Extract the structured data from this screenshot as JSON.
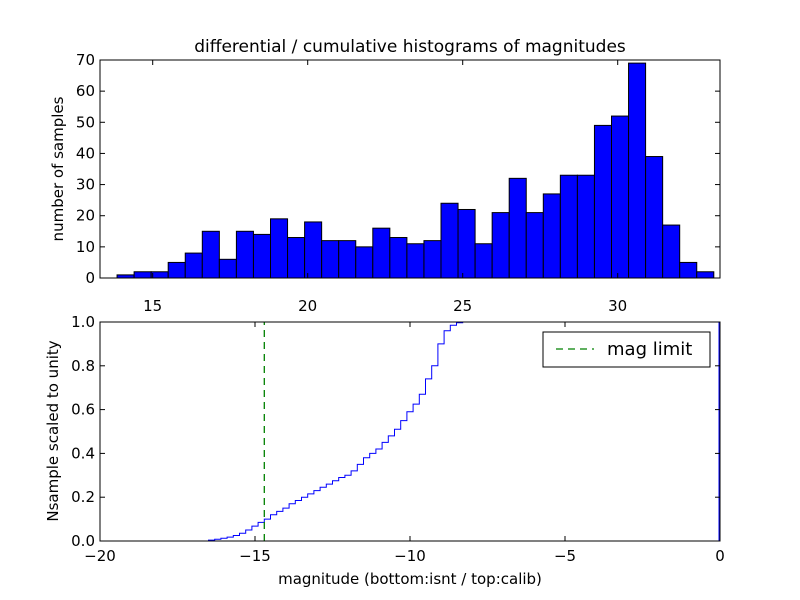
{
  "chart_data": [
    {
      "type": "bar",
      "title": "differential / cumulative histograms of magnitudes",
      "ylabel": "number of samples",
      "xlabel": "",
      "xlim": [
        13.3,
        33.3
      ],
      "ylim": [
        0,
        70
      ],
      "xticks": [
        "15",
        "20",
        "25",
        "30"
      ],
      "yticks": [
        "0",
        "10",
        "20",
        "30",
        "40",
        "50",
        "60",
        "70"
      ],
      "bar_color": "#0000ff",
      "bin_edges": [
        13.3,
        13.85,
        14.4,
        14.95,
        15.5,
        16.05,
        16.6,
        17.15,
        17.7,
        18.25,
        18.8,
        19.35,
        19.9,
        20.45,
        21.0,
        21.55,
        22.1,
        22.65,
        23.2,
        23.75,
        24.3,
        24.85,
        25.4,
        25.95,
        26.5,
        27.05,
        27.6,
        28.15,
        28.7,
        29.25,
        29.8,
        30.35,
        30.9,
        31.45,
        32.0,
        32.55,
        33.1
      ],
      "values": [
        0,
        1,
        2,
        2,
        5,
        8,
        15,
        6,
        15,
        14,
        19,
        13,
        18,
        12,
        12,
        10,
        16,
        13,
        11,
        12,
        24,
        22,
        11,
        21,
        32,
        21,
        27,
        33,
        33,
        49,
        52,
        69,
        39,
        17,
        5,
        2
      ]
    },
    {
      "type": "line",
      "xlabel": "magnitude (bottom:isnt / top:calib)",
      "ylabel": "Nsample scaled to unity",
      "xlim": [
        -20,
        0
      ],
      "ylim": [
        0,
        1
      ],
      "xticks": [
        "−20",
        "−15",
        "−10",
        "−5",
        "0"
      ],
      "yticks": [
        "0.0",
        "0.2",
        "0.4",
        "0.6",
        "0.8",
        "1.0"
      ],
      "series": [
        {
          "step": true,
          "color": "#0000ff",
          "x": [
            -20.0,
            -16.7,
            -16.5,
            -16.3,
            -16.1,
            -15.9,
            -15.7,
            -15.5,
            -15.3,
            -15.1,
            -14.9,
            -14.7,
            -14.5,
            -14.3,
            -14.1,
            -13.9,
            -13.7,
            -13.5,
            -13.3,
            -13.1,
            -12.9,
            -12.7,
            -12.5,
            -12.3,
            -12.1,
            -11.9,
            -11.7,
            -11.5,
            -11.3,
            -11.1,
            -10.9,
            -10.7,
            -10.5,
            -10.3,
            -10.1,
            -9.9,
            -9.7,
            -9.5,
            -9.3,
            -9.1,
            -8.9,
            -8.7,
            -8.5,
            -8.3,
            0.0
          ],
          "y": [
            0.0,
            0.0,
            0.004,
            0.008,
            0.013,
            0.018,
            0.025,
            0.035,
            0.05,
            0.068,
            0.085,
            0.1,
            0.12,
            0.135,
            0.15,
            0.17,
            0.185,
            0.2,
            0.215,
            0.23,
            0.245,
            0.26,
            0.275,
            0.29,
            0.3,
            0.32,
            0.35,
            0.38,
            0.4,
            0.42,
            0.45,
            0.48,
            0.51,
            0.55,
            0.59,
            0.625,
            0.67,
            0.74,
            0.8,
            0.9,
            0.96,
            0.985,
            0.997,
            1.0,
            1.0
          ]
        },
        {
          "name": "mag limit",
          "style": "dashed",
          "color": "#008000",
          "x": [
            -14.7,
            -14.7
          ],
          "y": [
            0,
            1
          ]
        }
      ],
      "legend": "top-right"
    }
  ]
}
